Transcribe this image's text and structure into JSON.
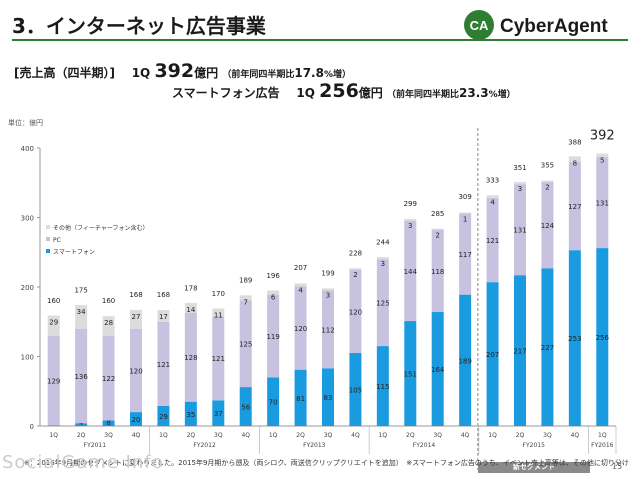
{
  "page": {
    "title": "3．インターネット広告事業",
    "brand": "CyberAgent",
    "brand_mark": "CA",
    "summary": {
      "label": "[売上高（四半期）]",
      "q_label": "1Q",
      "total_value": "392",
      "total_unit": "億円",
      "total_growth_prefix": "（前年同四半期比",
      "total_growth_value": "17.8",
      "total_growth_suffix": "%増）",
      "sp_label": "スマートフォン広告",
      "sp_q_label": "1Q",
      "sp_value": "256",
      "sp_unit": "億円",
      "sp_growth_prefix": "（前年同四半期比",
      "sp_growth_value": "23.3",
      "sp_growth_suffix": "%増）"
    },
    "unit_label": "単位：億円",
    "new_segment_label": "新セグメント",
    "footnote": "※：2016年9月期のセグメントに変わりました。2015年9月期から遡及（両シロク、両送信クリップクリエイトを追加）　※スマートフォン広告のうち、イベント売上高等は、その他に切り分け",
    "page_number": "15",
    "watermark": "SocialGame Info"
  },
  "chart_data": {
    "type": "bar",
    "stacked": true,
    "ylim": [
      0,
      400
    ],
    "yticks": [
      0,
      100,
      200,
      300,
      400
    ],
    "grid": false,
    "legend_position": "upper-left",
    "categories": [
      "1Q",
      "2Q",
      "3Q",
      "4Q",
      "1Q",
      "2Q",
      "3Q",
      "4Q",
      "1Q",
      "2Q",
      "3Q",
      "4Q",
      "1Q",
      "2Q",
      "3Q",
      "4Q",
      "1Q",
      "2Q",
      "3Q",
      "4Q",
      "1Q"
    ],
    "fiscal_groups": [
      {
        "label": "FY2011",
        "start": 0,
        "end": 3
      },
      {
        "label": "FY2012",
        "start": 4,
        "end": 7
      },
      {
        "label": "FY2013",
        "start": 8,
        "end": 11
      },
      {
        "label": "FY2014",
        "start": 12,
        "end": 15
      },
      {
        "label": "FY2015",
        "start": 16,
        "end": 19
      },
      {
        "label": "FY2016",
        "start": 20,
        "end": 20
      }
    ],
    "series": [
      {
        "name": "スマートフォン",
        "color": "#1a9be0",
        "values": [
          1,
          4,
          8,
          20,
          29,
          35,
          37,
          56,
          70,
          81,
          83,
          105,
          115,
          151,
          164,
          189,
          207,
          217,
          227,
          253,
          256
        ]
      },
      {
        "name": "PC",
        "color": "#c8c1df",
        "values": [
          129,
          136,
          122,
          120,
          121,
          128,
          121,
          125,
          119,
          120,
          112,
          120,
          125,
          144,
          118,
          117,
          121,
          131,
          124,
          127,
          131
        ]
      },
      {
        "name": "その他（フィーチャーフォン含む）",
        "color": "#dcdcdc",
        "values": [
          29,
          34,
          28,
          27,
          17,
          14,
          11,
          7,
          6,
          4,
          3,
          2,
          3,
          3,
          2,
          1,
          4,
          3,
          2,
          8,
          5
        ]
      }
    ],
    "totals": [
      160,
      175,
      160,
      168,
      168,
      178,
      170,
      189,
      196,
      207,
      199,
      228,
      244,
      299,
      285,
      309,
      333,
      351,
      355,
      388,
      392
    ],
    "highlight_index": 20,
    "new_segment_start_index": 16
  }
}
